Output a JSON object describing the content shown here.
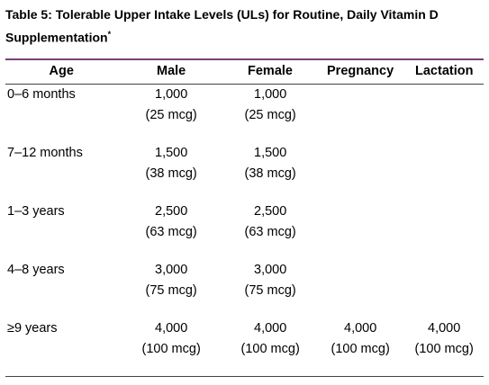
{
  "table": {
    "title": "Table 5: Tolerable Upper Intake Levels (ULs) for Routine, Daily Vitamin D Supplementation",
    "title_note": "*",
    "header": [
      "Age",
      "Male",
      "Female",
      "Pregnancy",
      "Lactation"
    ],
    "rows": [
      [
        [
          "0–6 months"
        ],
        [
          "1,000",
          "(25 mcg)"
        ],
        [
          "1,000",
          "(25 mcg)"
        ],
        [],
        []
      ],
      [
        [
          "7–12 months"
        ],
        [
          "1,500",
          "(38 mcg)"
        ],
        [
          "1,500",
          "(38 mcg)"
        ],
        [],
        []
      ],
      [
        [
          "1–3 years"
        ],
        [
          "2,500",
          "(63 mcg)"
        ],
        [
          "2,500",
          "(63 mcg)"
        ],
        [],
        []
      ],
      [
        [
          "4–8 years"
        ],
        [
          "3,000",
          "(75 mcg)"
        ],
        [
          "3,000",
          "(75 mcg)"
        ],
        [],
        []
      ],
      [
        [
          "≥9 years"
        ],
        [
          "4,000",
          "(100 mcg)"
        ],
        [
          "4,000",
          "(100 mcg)"
        ],
        [
          "4,000",
          "(100 mcg)"
        ],
        [
          "4,000",
          "(100 mcg)"
        ]
      ]
    ]
  }
}
